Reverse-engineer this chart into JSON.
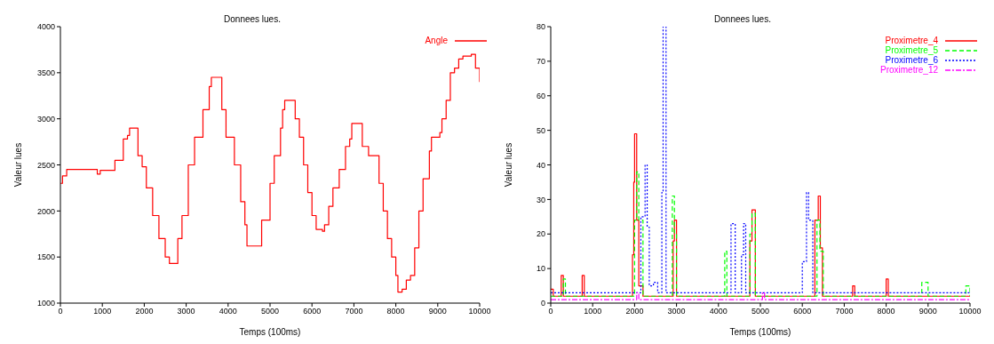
{
  "chart_data": [
    {
      "type": "step",
      "title": "Donnees lues.",
      "xlabel": "Temps (100ms)",
      "ylabel": "Valeur lues",
      "xlim": [
        0,
        10000
      ],
      "ylim": [
        1000,
        4000
      ],
      "xticks": [
        0,
        1000,
        2000,
        3000,
        4000,
        5000,
        6000,
        7000,
        8000,
        9000,
        10000
      ],
      "yticks": [
        1000,
        1500,
        2000,
        2500,
        3000,
        3500,
        4000
      ],
      "grid": false,
      "legend": "top right",
      "series": [
        {
          "name": "Angle",
          "color": "#ff0000",
          "line_style": "solid",
          "x": [
            0,
            50,
            150,
            850,
            880,
            950,
            1250,
            1300,
            1500,
            1600,
            1650,
            1750,
            1850,
            1950,
            2050,
            2200,
            2350,
            2500,
            2600,
            2700,
            2800,
            2900,
            3050,
            3200,
            3400,
            3550,
            3600,
            3750,
            3850,
            3950,
            4150,
            4300,
            4400,
            4450,
            4650,
            4800,
            5000,
            5100,
            5250,
            5300,
            5350,
            5550,
            5600,
            5700,
            5800,
            5900,
            6000,
            6100,
            6250,
            6300,
            6400,
            6500,
            6650,
            6800,
            6900,
            6950,
            7150,
            7200,
            7350,
            7450,
            7600,
            7700,
            7800,
            7900,
            8000,
            8050,
            8150,
            8250,
            8350,
            8450,
            8550,
            8650,
            8800,
            8850,
            9050,
            9100,
            9200,
            9300,
            9400,
            9500,
            9600,
            9800,
            9900,
            10000
          ],
          "values": [
            2300,
            2380,
            2450,
            2450,
            2400,
            2440,
            2440,
            2550,
            2780,
            2820,
            2900,
            2900,
            2600,
            2480,
            2250,
            1950,
            1700,
            1500,
            1430,
            1430,
            1700,
            1950,
            2500,
            2800,
            3100,
            3350,
            3450,
            3450,
            3100,
            2800,
            2500,
            2100,
            1850,
            1620,
            1620,
            1900,
            2300,
            2600,
            2900,
            3100,
            3200,
            3200,
            3000,
            2800,
            2500,
            2200,
            1950,
            1800,
            1780,
            1850,
            2050,
            2250,
            2450,
            2700,
            2780,
            2950,
            2950,
            2700,
            2600,
            2600,
            2300,
            2000,
            1700,
            1500,
            1300,
            1120,
            1150,
            1250,
            1300,
            1600,
            2000,
            2350,
            2650,
            2800,
            2850,
            3000,
            3200,
            3500,
            3550,
            3650,
            3680,
            3700,
            3550,
            3400
          ]
        }
      ]
    },
    {
      "type": "step",
      "title": "Donnees lues.",
      "xlabel": "Temps (100ms)",
      "ylabel": "Valeur lues",
      "xlim": [
        0,
        10000
      ],
      "ylim": [
        0,
        80
      ],
      "xticks": [
        0,
        1000,
        2000,
        3000,
        4000,
        5000,
        6000,
        7000,
        8000,
        9000,
        10000
      ],
      "yticks": [
        0,
        10,
        20,
        30,
        40,
        50,
        60,
        70,
        80
      ],
      "grid": false,
      "legend": "top right",
      "series": [
        {
          "name": "Proximetre_4",
          "color": "#ff0000",
          "line_style": "solid",
          "x": [
            0,
            60,
            250,
            300,
            700,
            750,
            800,
            1900,
            1950,
            1980,
            2000,
            2050,
            2100,
            2200,
            2900,
            2920,
            2950,
            3000,
            4700,
            4750,
            4800,
            4880,
            6200,
            6300,
            6380,
            6430,
            6480,
            6550,
            7200,
            7250,
            8000,
            8050,
            10000
          ],
          "values": [
            4,
            2,
            8,
            2,
            2,
            8,
            2,
            2,
            14,
            35,
            49,
            24,
            5,
            2,
            2,
            18,
            24,
            2,
            2,
            18,
            27,
            2,
            2,
            24,
            31,
            16,
            2,
            2,
            5,
            2,
            7,
            2,
            2
          ]
        },
        {
          "name": "Proximetre_5",
          "color": "#00ff00",
          "line_style": "dashed",
          "x": [
            0,
            300,
            350,
            400,
            1950,
            2000,
            2050,
            2100,
            2200,
            2850,
            2900,
            2950,
            3000,
            4100,
            4150,
            4200,
            4750,
            4800,
            4880,
            6300,
            6350,
            6420,
            6500,
            8800,
            8850,
            9000,
            9850,
            9900,
            10000
          ],
          "values": [
            2,
            7,
            2,
            2,
            2,
            24,
            38,
            24,
            2,
            2,
            31,
            20,
            2,
            2,
            15,
            2,
            20,
            26,
            2,
            2,
            24,
            15,
            2,
            2,
            6,
            2,
            2,
            5,
            2
          ]
        },
        {
          "name": "Proximetre_6",
          "color": "#0000ff",
          "line_style": "dotted",
          "x": [
            0,
            2100,
            2150,
            2250,
            2300,
            2350,
            2450,
            2550,
            2650,
            2680,
            2750,
            2780,
            2850,
            4250,
            4300,
            4400,
            4550,
            4600,
            4650,
            4750,
            5900,
            6000,
            6100,
            6150,
            6250,
            10000
          ],
          "values": [
            3,
            3,
            25,
            40,
            22,
            5,
            6,
            3,
            32,
            80,
            3,
            3,
            3,
            3,
            23,
            3,
            14,
            23,
            3,
            3,
            3,
            12,
            32,
            24,
            3,
            3
          ]
        },
        {
          "name": "Proximetre_12",
          "color": "#ff00ff",
          "line_style": "dashdot",
          "x": [
            0,
            2000,
            2050,
            2100,
            5000,
            5050,
            5100,
            10000
          ],
          "values": [
            1,
            1,
            3,
            1,
            1,
            3,
            1,
            1
          ]
        }
      ]
    }
  ]
}
